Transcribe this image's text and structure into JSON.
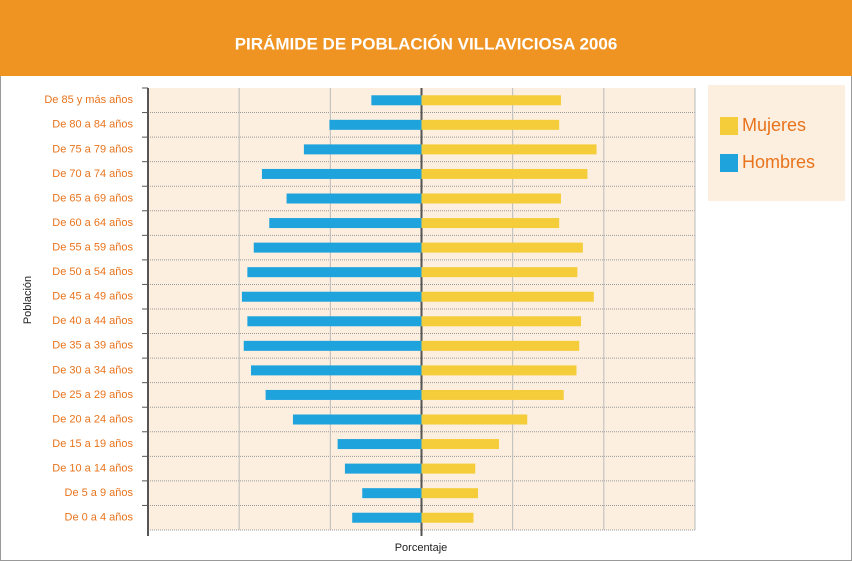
{
  "chart_data": {
    "type": "pyramid",
    "title": "PIRÁMIDE DE POBLACIÓN VILLAVICIOSA 2006",
    "ylabel": "Población",
    "xlabel": "Porcentaje",
    "categories": [
      "De 85 y más años",
      "De 80 a 84 años",
      "De 75 a 79 años",
      "De 70 a 74 años",
      "De 65 a 69 años",
      "De 60 a 64 años",
      "De 55 a 59 años",
      "De 50 a 54 años",
      "De 45 a 49 años",
      "De 40 a 44 años",
      "De 35 a 39 años",
      "De 30 a 34 años",
      "De 25 a 29 años",
      "De 20 a 24 años",
      "De 15 a 19 años",
      "De 10 a 14 años",
      "De 5 a 9 años",
      "De 0 a 4 años"
    ],
    "series": [
      {
        "name": "Mujeres",
        "color": "#f5cd3a",
        "values": [
          1.53,
          1.51,
          1.92,
          1.82,
          1.53,
          1.51,
          1.77,
          1.71,
          1.89,
          1.75,
          1.73,
          1.7,
          1.56,
          1.16,
          0.85,
          0.59,
          0.62,
          0.57
        ]
      },
      {
        "name": "Hombres",
        "color": "#1ea3dd",
        "values": [
          -0.55,
          -1.01,
          -1.29,
          -1.75,
          -1.48,
          -1.67,
          -1.84,
          -1.91,
          -1.97,
          -1.91,
          -1.95,
          -1.87,
          -1.71,
          -1.41,
          -0.92,
          -0.84,
          -0.65,
          -0.76
        ]
      }
    ],
    "xlim": [
      -3,
      3
    ],
    "xticks": [
      -3,
      -2,
      -1,
      0,
      1,
      2,
      3
    ],
    "grid": true
  }
}
